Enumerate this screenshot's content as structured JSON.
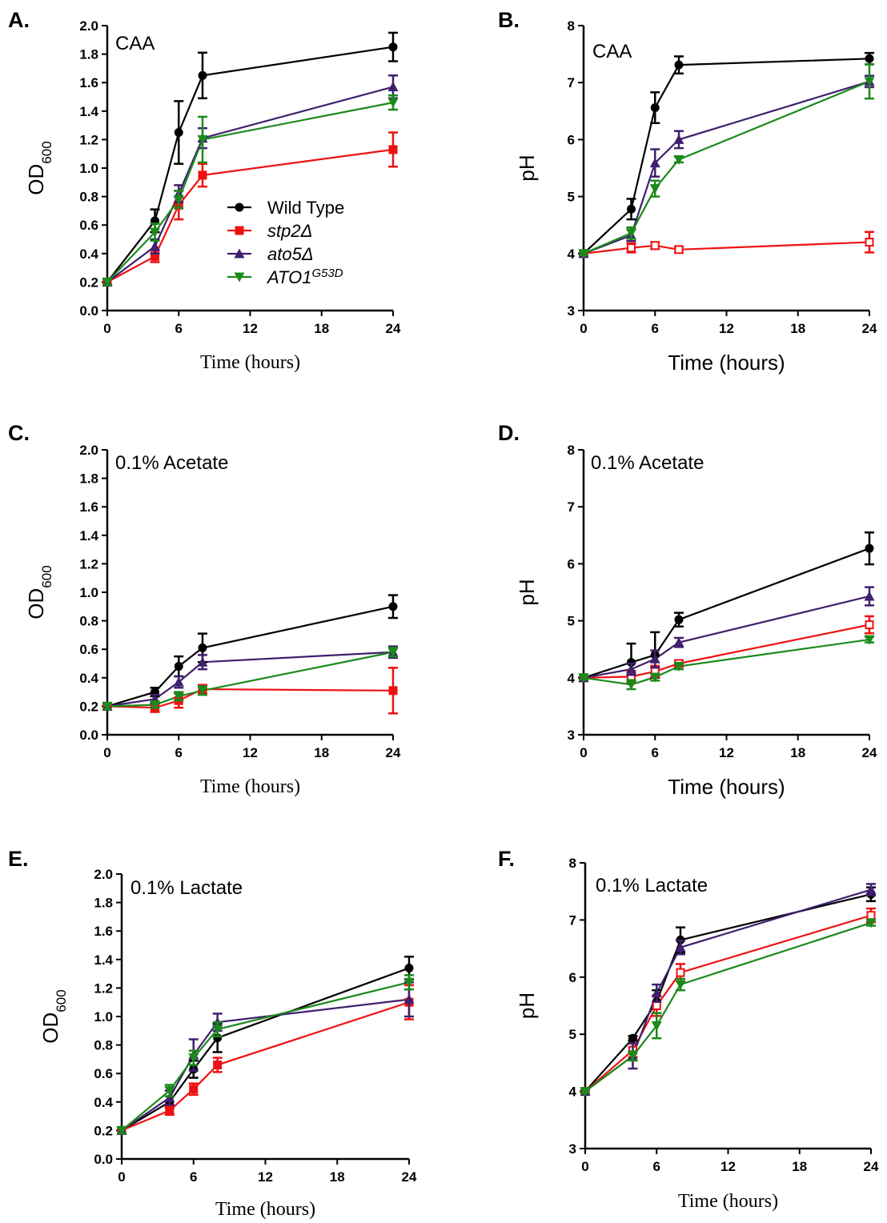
{
  "colors": {
    "Wild Type": "#000000",
    "stp2Δ": "#ee1111",
    "ato5Δ": "#3f1f6e",
    "ATO1G53D": "#1b8a1b"
  },
  "legend": {
    "entries": [
      {
        "key": "Wild Type",
        "label": "Wild Type",
        "italic": false,
        "marker": "circle"
      },
      {
        "key": "stp2Δ",
        "label": "stp2Δ",
        "italic": true,
        "marker": "square"
      },
      {
        "key": "ato5Δ",
        "label": "ato5Δ",
        "italic": true,
        "marker": "triangle-up"
      },
      {
        "key": "ATO1G53D",
        "label": "ATO1",
        "superscript": "G53D",
        "italic": true,
        "marker": "triangle-down"
      }
    ]
  },
  "chart_data": [
    {
      "panel": "A.",
      "type": "line",
      "annotation": "CAA",
      "xlabel": "Time (hours)",
      "ylabel": "OD",
      "ylabel_sub": "600",
      "xlim": [
        0,
        24
      ],
      "ylim": [
        0,
        2.0
      ],
      "xticks": [
        "0",
        "6",
        "12",
        "18",
        "24"
      ],
      "yticks": [
        "0.0",
        "0.2",
        "0.4",
        "0.6",
        "0.8",
        "1.0",
        "1.2",
        "1.4",
        "1.6",
        "1.8",
        "2.0"
      ],
      "x": [
        0,
        4,
        6,
        8,
        24
      ],
      "series": [
        {
          "key": "Wild Type",
          "marker": "circle",
          "values": [
            0.2,
            0.63,
            1.25,
            1.65,
            1.85
          ],
          "errors": [
            0.02,
            0.08,
            0.22,
            0.16,
            0.1
          ]
        },
        {
          "key": "stp2Δ",
          "marker": "square",
          "values": [
            0.2,
            0.38,
            0.74,
            0.95,
            1.13
          ],
          "errors": [
            0.02,
            0.04,
            0.1,
            0.08,
            0.12
          ]
        },
        {
          "key": "ato5Δ",
          "marker": "triangle-up",
          "values": [
            0.2,
            0.45,
            0.82,
            1.21,
            1.57
          ],
          "errors": [
            0.02,
            0.05,
            0.06,
            0.07,
            0.08
          ]
        },
        {
          "key": "ATO1G53D",
          "marker": "triangle-down",
          "values": [
            0.2,
            0.55,
            0.78,
            1.2,
            1.46
          ],
          "errors": [
            0.02,
            0.06,
            0.06,
            0.16,
            0.05
          ]
        }
      ]
    },
    {
      "panel": "B.",
      "type": "line",
      "annotation": "CAA",
      "xlabel": "Time (hours)",
      "ylabel": "pH",
      "ylabel_sub": "",
      "xlim": [
        0,
        24
      ],
      "ylim": [
        3,
        8
      ],
      "xticks": [
        "0",
        "6",
        "12",
        "18",
        "24"
      ],
      "yticks": [
        "3",
        "4",
        "5",
        "6",
        "7",
        "8"
      ],
      "x": [
        0,
        4,
        6,
        8,
        24
      ],
      "series": [
        {
          "key": "Wild Type",
          "marker": "circle",
          "values": [
            4.0,
            4.78,
            6.56,
            7.31,
            7.42
          ],
          "errors": [
            0.03,
            0.18,
            0.27,
            0.15,
            0.1
          ]
        },
        {
          "key": "stp2Δ",
          "marker": "square-open",
          "values": [
            4.0,
            4.1,
            4.14,
            4.07,
            4.2
          ],
          "errors": [
            0.03,
            0.08,
            0.06,
            0.05,
            0.18
          ]
        },
        {
          "key": "ato5Δ",
          "marker": "triangle-up",
          "values": [
            4.0,
            4.32,
            5.59,
            6.0,
            7.02
          ],
          "errors": [
            0.03,
            0.1,
            0.24,
            0.15,
            0.1
          ]
        },
        {
          "key": "ATO1G53D",
          "marker": "triangle-down",
          "values": [
            4.0,
            4.36,
            5.14,
            5.65,
            7.02
          ],
          "errors": [
            0.03,
            0.1,
            0.14,
            0.05,
            0.3
          ]
        }
      ]
    },
    {
      "panel": "C.",
      "type": "line",
      "annotation": "0.1% Acetate",
      "xlabel": "Time (hours)",
      "ylabel": "OD",
      "ylabel_sub": "600",
      "xlim": [
        0,
        24
      ],
      "ylim": [
        0,
        2.0
      ],
      "xticks": [
        "0",
        "6",
        "12",
        "18",
        "24"
      ],
      "yticks": [
        "0.0",
        "0.2",
        "0.4",
        "0.6",
        "0.8",
        "1.0",
        "1.2",
        "1.4",
        "1.6",
        "1.8",
        "2.0"
      ],
      "x": [
        0,
        4,
        6,
        8,
        24
      ],
      "series": [
        {
          "key": "Wild Type",
          "marker": "circle",
          "values": [
            0.2,
            0.3,
            0.48,
            0.61,
            0.9
          ],
          "errors": [
            0.02,
            0.03,
            0.07,
            0.1,
            0.08
          ]
        },
        {
          "key": "stp2Δ",
          "marker": "square",
          "values": [
            0.2,
            0.19,
            0.24,
            0.32,
            0.31
          ],
          "errors": [
            0.02,
            0.03,
            0.05,
            0.03,
            0.16
          ]
        },
        {
          "key": "ato5Δ",
          "marker": "triangle-up",
          "values": [
            0.2,
            0.25,
            0.37,
            0.51,
            0.58
          ],
          "errors": [
            0.02,
            0.03,
            0.04,
            0.05,
            0.04
          ]
        },
        {
          "key": "ATO1G53D",
          "marker": "triangle-down",
          "values": [
            0.2,
            0.21,
            0.27,
            0.31,
            0.58
          ],
          "errors": [
            0.02,
            0.02,
            0.03,
            0.03,
            0.03
          ]
        }
      ]
    },
    {
      "panel": "D.",
      "type": "line",
      "annotation": "0.1% Acetate",
      "xlabel": "Time (hours)",
      "ylabel": "pH",
      "ylabel_sub": "",
      "xlim": [
        0,
        24
      ],
      "ylim": [
        3,
        8
      ],
      "xticks": [
        "0",
        "6",
        "12",
        "18",
        "24"
      ],
      "yticks": [
        "3",
        "4",
        "5",
        "6",
        "7",
        "8"
      ],
      "x": [
        0,
        4,
        6,
        8,
        24
      ],
      "series": [
        {
          "key": "Wild Type",
          "marker": "circle",
          "values": [
            4.0,
            4.27,
            4.4,
            5.02,
            6.27
          ],
          "errors": [
            0.03,
            0.33,
            0.4,
            0.12,
            0.28
          ]
        },
        {
          "key": "stp2Δ",
          "marker": "square-open",
          "values": [
            4.0,
            4.02,
            4.11,
            4.25,
            4.93
          ],
          "errors": [
            0.03,
            0.1,
            0.1,
            0.06,
            0.15
          ]
        },
        {
          "key": "ato5Δ",
          "marker": "triangle-up",
          "values": [
            4.0,
            4.15,
            4.33,
            4.62,
            5.43
          ],
          "errors": [
            0.03,
            0.1,
            0.15,
            0.08,
            0.16
          ]
        },
        {
          "key": "ATO1G53D",
          "marker": "triangle-down",
          "values": [
            4.0,
            3.88,
            4.01,
            4.2,
            4.67
          ],
          "errors": [
            0.03,
            0.08,
            0.06,
            0.05,
            0.05
          ]
        }
      ]
    },
    {
      "panel": "E.",
      "type": "line",
      "annotation": "0.1% Lactate",
      "xlabel": "Time (hours)",
      "ylabel": "OD",
      "ylabel_sub": "600",
      "xlim": [
        0,
        24
      ],
      "ylim": [
        0,
        2.0
      ],
      "xticks": [
        "0",
        "6",
        "12",
        "18",
        "24"
      ],
      "yticks": [
        "0.0",
        "0.2",
        "0.4",
        "0.6",
        "0.8",
        "1.0",
        "1.2",
        "1.4",
        "1.6",
        "1.8",
        "2.0"
      ],
      "x": [
        0,
        4,
        6,
        8,
        24
      ],
      "series": [
        {
          "key": "Wild Type",
          "marker": "circle",
          "values": [
            0.2,
            0.4,
            0.63,
            0.85,
            1.34
          ],
          "errors": [
            0.02,
            0.04,
            0.06,
            0.1,
            0.08
          ]
        },
        {
          "key": "stp2Δ",
          "marker": "square",
          "values": [
            0.2,
            0.34,
            0.49,
            0.66,
            1.1
          ],
          "errors": [
            0.02,
            0.03,
            0.04,
            0.05,
            0.12
          ]
        },
        {
          "key": "ato5Δ",
          "marker": "triangle-up",
          "values": [
            0.2,
            0.43,
            0.73,
            0.96,
            1.12
          ],
          "errors": [
            0.02,
            0.05,
            0.11,
            0.06,
            0.12
          ]
        },
        {
          "key": "ATO1G53D",
          "marker": "triangle-down",
          "values": [
            0.2,
            0.48,
            0.71,
            0.91,
            1.24
          ],
          "errors": [
            0.02,
            0.04,
            0.05,
            0.05,
            0.05
          ]
        }
      ]
    },
    {
      "panel": "F.",
      "type": "line",
      "annotation": "0.1% Lactate",
      "xlabel": "Time (hours)",
      "ylabel": "pH",
      "ylabel_sub": "",
      "xlim": [
        0,
        24
      ],
      "ylim": [
        3,
        8
      ],
      "xticks": [
        "0",
        "6",
        "12",
        "18",
        "24"
      ],
      "yticks": [
        "3",
        "4",
        "5",
        "6",
        "7",
        "8"
      ],
      "x": [
        0,
        4,
        6,
        8,
        24
      ],
      "series": [
        {
          "key": "Wild Type",
          "marker": "circle",
          "values": [
            4.0,
            4.93,
            5.57,
            6.65,
            7.45
          ],
          "errors": [
            0.03,
            0.04,
            0.2,
            0.22,
            0.12
          ]
        },
        {
          "key": "stp2Δ",
          "marker": "square-open",
          "values": [
            4.0,
            4.72,
            5.5,
            6.08,
            7.08
          ],
          "errors": [
            0.03,
            0.12,
            0.18,
            0.15,
            0.12
          ]
        },
        {
          "key": "ato5Δ",
          "marker": "triangle-up",
          "values": [
            4.0,
            4.62,
            5.72,
            6.52,
            7.53
          ],
          "errors": [
            0.03,
            0.22,
            0.15,
            0.12,
            0.1
          ]
        },
        {
          "key": "ATO1G53D",
          "marker": "triangle-down",
          "values": [
            4.0,
            4.62,
            5.15,
            5.87,
            6.95
          ],
          "errors": [
            0.03,
            0.08,
            0.22,
            0.1,
            0.05
          ]
        }
      ]
    }
  ]
}
